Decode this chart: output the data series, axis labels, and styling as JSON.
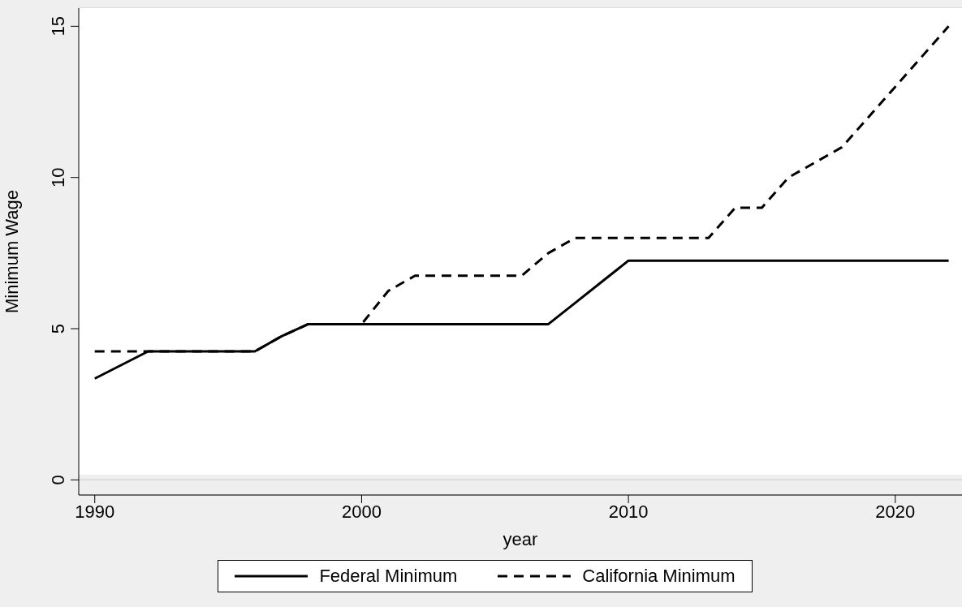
{
  "chart_data": {
    "type": "line",
    "xlabel": "year",
    "ylabel": "Minimum Wage",
    "x": [
      1990,
      1991,
      1992,
      1993,
      1994,
      1995,
      1996,
      1997,
      1998,
      1999,
      2000,
      2001,
      2002,
      2003,
      2004,
      2005,
      2006,
      2007,
      2008,
      2009,
      2010,
      2011,
      2012,
      2013,
      2014,
      2015,
      2016,
      2017,
      2018,
      2019,
      2020,
      2021,
      2022
    ],
    "series": [
      {
        "name": "Federal Minimum",
        "color": "#000000",
        "line_style": "solid",
        "values": [
          3.35,
          3.8,
          4.25,
          4.25,
          4.25,
          4.25,
          4.25,
          4.75,
          5.15,
          5.15,
          5.15,
          5.15,
          5.15,
          5.15,
          5.15,
          5.15,
          5.15,
          5.15,
          5.85,
          6.55,
          7.25,
          7.25,
          7.25,
          7.25,
          7.25,
          7.25,
          7.25,
          7.25,
          7.25,
          7.25,
          7.25,
          7.25,
          7.25
        ]
      },
      {
        "name": "California Minimum",
        "color": "#000000",
        "line_style": "dashed",
        "values": [
          4.25,
          4.25,
          4.25,
          4.25,
          4.25,
          4.25,
          4.25,
          4.75,
          5.15,
          5.15,
          5.15,
          6.25,
          6.75,
          6.75,
          6.75,
          6.75,
          6.75,
          7.5,
          8,
          8,
          8,
          8,
          8,
          8,
          9,
          9,
          10,
          10.5,
          11,
          12,
          13,
          14,
          15
        ]
      }
    ],
    "xlim": [
      1989.4,
      2022.5
    ],
    "xticks": [
      1990,
      2000,
      2010,
      2020
    ],
    "ylim": [
      -0.5,
      15.6
    ],
    "yticks": [
      0,
      5,
      10,
      15
    ],
    "grid": "y",
    "legend": "bottom",
    "marker": "none"
  }
}
